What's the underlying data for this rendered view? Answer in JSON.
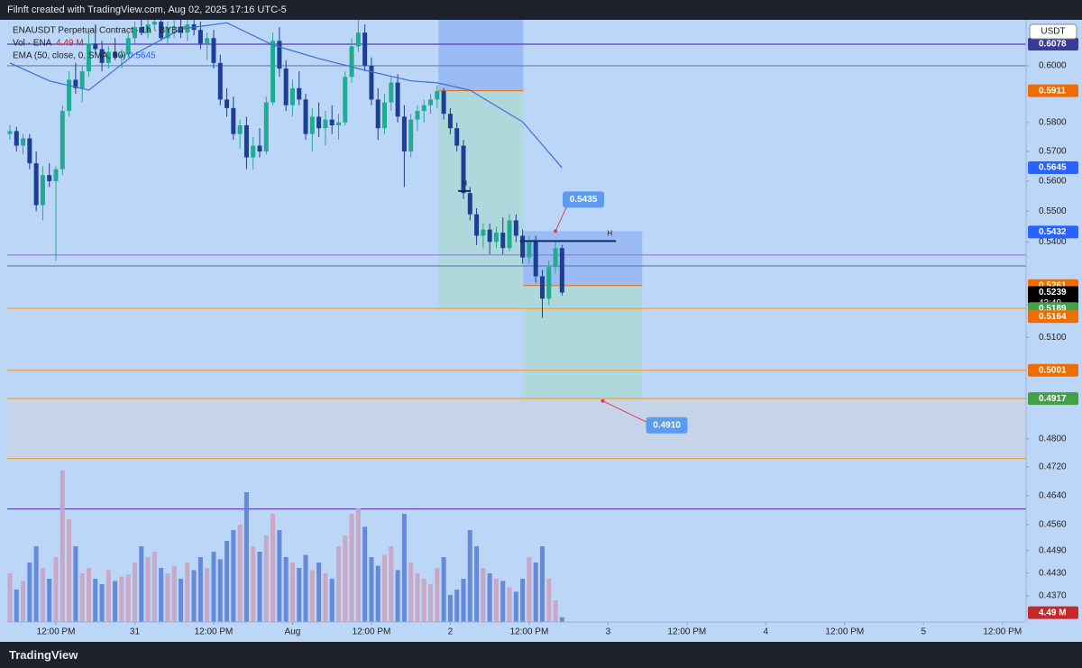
{
  "chart_data": {
    "type": "candlestick",
    "header": "Filnft created with TradingView.com, Aug 02, 2025 17:16 UTC-5",
    "footer": "TradingView",
    "title": "ENAUSDT Perpetual Contract · 1h · BYBIT",
    "currency": "USDT",
    "log_scale": true,
    "xlim": [
      -7.41,
      147.6
    ],
    "ylim": [
      0.4302,
      0.6167
    ],
    "xticks": [
      {
        "value": 0,
        "label": "12:00 PM"
      },
      {
        "value": 12,
        "label": "31"
      },
      {
        "value": 24,
        "label": "12:00 PM"
      },
      {
        "value": 36,
        "label": "Aug"
      },
      {
        "value": 48,
        "label": "12:00 PM"
      },
      {
        "value": 60,
        "label": "2"
      },
      {
        "value": 72,
        "label": "12:00 PM"
      },
      {
        "value": 84,
        "label": "3"
      },
      {
        "value": 96,
        "label": "12:00 PM"
      },
      {
        "value": 108,
        "label": "4"
      },
      {
        "value": 120,
        "label": "12:00 PM"
      },
      {
        "value": 132,
        "label": "5"
      },
      {
        "value": 144,
        "label": "12:00 PM"
      }
    ],
    "yticks": [
      {
        "value": 0.6,
        "label": "0.6000"
      },
      {
        "value": 0.58,
        "label": "0.5800"
      },
      {
        "value": 0.57,
        "label": "0.5700"
      },
      {
        "value": 0.56,
        "label": "0.5600"
      },
      {
        "value": 0.55,
        "label": "0.5500"
      },
      {
        "value": 0.54,
        "label": "0.5400"
      },
      {
        "value": 0.52,
        "label": "0.5200"
      },
      {
        "value": 0.51,
        "label": "0.5100"
      },
      {
        "value": 0.48,
        "label": "0.4800"
      },
      {
        "value": 0.472,
        "label": "0.4720"
      },
      {
        "value": 0.464,
        "label": "0.4640"
      },
      {
        "value": 0.456,
        "label": "0.4560"
      },
      {
        "value": 0.449,
        "label": "0.4490"
      },
      {
        "value": 0.443,
        "label": "0.4430"
      },
      {
        "value": 0.437,
        "label": "0.4370"
      }
    ],
    "up_color": "#22ab94",
    "down_color": "#1c3f95",
    "x": [
      -7,
      -6,
      -5,
      -4,
      -3,
      -2,
      -1,
      0,
      1,
      2,
      3,
      4,
      5,
      6,
      7,
      8,
      9,
      10,
      11,
      12,
      13,
      14,
      15,
      16,
      17,
      18,
      19,
      20,
      21,
      22,
      23,
      24,
      25,
      26,
      27,
      28,
      29,
      30,
      31,
      32,
      33,
      34,
      35,
      36,
      37,
      38,
      39,
      40,
      41,
      42,
      43,
      44,
      45,
      46,
      47,
      48,
      49,
      50,
      51,
      52,
      53,
      54,
      55,
      56,
      57,
      58,
      59,
      60,
      61,
      62,
      63,
      64,
      65,
      66,
      67,
      68,
      69,
      70,
      71,
      72,
      73,
      74,
      75,
      76,
      77
    ],
    "open": [
      0.576,
      0.577,
      0.572,
      0.5745,
      0.566,
      0.552,
      0.562,
      0.56,
      0.564,
      0.584,
      0.595,
      0.592,
      0.598,
      0.608,
      0.606,
      0.601,
      0.605,
      0.603,
      0.604,
      0.61,
      0.614,
      0.612,
      0.615,
      0.616,
      0.61,
      0.614,
      0.614,
      0.612,
      0.615,
      0.613,
      0.608,
      0.61,
      0.601,
      0.588,
      0.585,
      0.576,
      0.579,
      0.568,
      0.572,
      0.57,
      0.587,
      0.609,
      0.599,
      0.586,
      0.592,
      0.588,
      0.576,
      0.582,
      0.578,
      0.581,
      0.579,
      0.58,
      0.596,
      0.607,
      0.612,
      0.6,
      0.588,
      0.578,
      0.587,
      0.594,
      0.582,
      0.57,
      0.581,
      0.584,
      0.586,
      0.588,
      0.591,
      0.583,
      0.578,
      0.572,
      0.556,
      0.549,
      0.542,
      0.544,
      0.54,
      0.543,
      0.538,
      0.547,
      0.542,
      0.535,
      0.54,
      0.529,
      0.522,
      0.532,
      0.538
    ],
    "high": [
      0.579,
      0.5785,
      0.576,
      0.576,
      0.57,
      0.565,
      0.566,
      0.565,
      0.586,
      0.598,
      0.601,
      0.6,
      0.612,
      0.615,
      0.609,
      0.607,
      0.61,
      0.606,
      0.612,
      0.616,
      0.617,
      0.617,
      0.617,
      0.617,
      0.616,
      0.617,
      0.617,
      0.617,
      0.617,
      0.616,
      0.612,
      0.613,
      0.604,
      0.592,
      0.589,
      0.581,
      0.582,
      0.575,
      0.578,
      0.589,
      0.612,
      0.614,
      0.602,
      0.595,
      0.598,
      0.59,
      0.585,
      0.587,
      0.584,
      0.586,
      0.583,
      0.598,
      0.61,
      0.617,
      0.615,
      0.603,
      0.592,
      0.59,
      0.596,
      0.597,
      0.586,
      0.583,
      0.586,
      0.588,
      0.59,
      0.593,
      0.592,
      0.585,
      0.58,
      0.574,
      0.558,
      0.551,
      0.546,
      0.546,
      0.545,
      0.548,
      0.549,
      0.549,
      0.544,
      0.542,
      0.542,
      0.531,
      0.534,
      0.54,
      0.539
    ],
    "low": [
      0.574,
      0.57,
      0.569,
      0.564,
      0.55,
      0.547,
      0.558,
      0.534,
      0.562,
      0.582,
      0.59,
      0.587,
      0.596,
      0.604,
      0.598,
      0.599,
      0.602,
      0.599,
      0.603,
      0.608,
      0.611,
      0.61,
      0.613,
      0.609,
      0.608,
      0.61,
      0.61,
      0.609,
      0.611,
      0.606,
      0.602,
      0.599,
      0.586,
      0.582,
      0.574,
      0.571,
      0.564,
      0.564,
      0.568,
      0.569,
      0.586,
      0.596,
      0.584,
      0.582,
      0.586,
      0.574,
      0.57,
      0.575,
      0.572,
      0.576,
      0.574,
      0.579,
      0.594,
      0.605,
      0.598,
      0.586,
      0.574,
      0.576,
      0.584,
      0.58,
      0.558,
      0.568,
      0.577,
      0.58,
      0.583,
      0.585,
      0.581,
      0.576,
      0.57,
      0.554,
      0.547,
      0.539,
      0.538,
      0.536,
      0.538,
      0.536,
      0.537,
      0.54,
      0.533,
      0.533,
      0.527,
      0.516,
      0.52,
      0.53,
      0.523
    ],
    "close": [
      0.577,
      0.572,
      0.5745,
      0.566,
      0.552,
      0.562,
      0.56,
      0.564,
      0.584,
      0.595,
      0.592,
      0.598,
      0.608,
      0.606,
      0.601,
      0.605,
      0.603,
      0.604,
      0.61,
      0.614,
      0.612,
      0.615,
      0.616,
      0.61,
      0.614,
      0.614,
      0.612,
      0.615,
      0.613,
      0.608,
      0.61,
      0.601,
      0.588,
      0.585,
      0.576,
      0.579,
      0.568,
      0.572,
      0.57,
      0.587,
      0.609,
      0.599,
      0.586,
      0.592,
      0.588,
      0.576,
      0.582,
      0.578,
      0.581,
      0.579,
      0.58,
      0.596,
      0.607,
      0.612,
      0.6,
      0.588,
      0.578,
      0.587,
      0.594,
      0.582,
      0.57,
      0.581,
      0.584,
      0.586,
      0.588,
      0.591,
      0.583,
      0.578,
      0.572,
      0.556,
      0.549,
      0.542,
      0.544,
      0.54,
      0.543,
      0.538,
      0.547,
      0.542,
      0.535,
      0.54,
      0.529,
      0.522,
      0.532,
      0.538,
      0.5239
    ],
    "volume": {
      "name": "Vol · ENA",
      "values": [
        45,
        30,
        38,
        55,
        70,
        50,
        40,
        60,
        140,
        95,
        70,
        45,
        50,
        40,
        35,
        48,
        38,
        42,
        44,
        55,
        70,
        60,
        65,
        50,
        45,
        52,
        40,
        55,
        48,
        60,
        50,
        65,
        58,
        75,
        85,
        90,
        120,
        70,
        65,
        80,
        100,
        85,
        60,
        55,
        50,
        62,
        48,
        55,
        45,
        40,
        70,
        80,
        100,
        105,
        88,
        60,
        52,
        62,
        70,
        48,
        100,
        55,
        45,
        40,
        35,
        50,
        60,
        25,
        30,
        40,
        85,
        70,
        50,
        45,
        40,
        38,
        32,
        28,
        40,
        60,
        55,
        70,
        40,
        20,
        4.49
      ],
      "value_labels": {
        "84": "4.49 M"
      },
      "up_color": "#c9a3bf",
      "down_color": "#5b82d6",
      "label_color": "#c62828"
    },
    "ema": {
      "name": "EMA (50, close, 0, SMA, 50)",
      "color": "#3a6fd6",
      "x": [
        -7,
        -1,
        5,
        12,
        19,
        26,
        33,
        40,
        47,
        54,
        58,
        63,
        71,
        77
      ],
      "values": [
        0.601,
        0.5946,
        0.5913,
        0.6042,
        0.6133,
        0.6156,
        0.6075,
        0.6026,
        0.5984,
        0.5946,
        0.5939,
        0.5913,
        0.5802,
        0.5645
      ]
    },
    "levels": [
      {
        "value": 0.6078,
        "color": "#5b3fb8"
      },
      {
        "value": 0.6,
        "color": "#6b7fb0"
      },
      {
        "value": 0.5358,
        "color": "#8b7fd0"
      },
      {
        "value": 0.5323,
        "color": "#6b7fb0"
      },
      {
        "value": 0.5189,
        "color": "#f0a040"
      },
      {
        "value": 0.5001,
        "color": "#f0a040"
      },
      {
        "value": 0.4917,
        "color": "#f0a040"
      },
      {
        "value": 0.4744,
        "color": "#f0a040"
      },
      {
        "value": 0.4603,
        "color": "#5b3fb8"
      }
    ],
    "zone": {
      "top": 0.4917,
      "bottom": 0.4744,
      "color": "#c8d3e6"
    },
    "positions": [
      {
        "x0": 58.2,
        "x1": 71.1,
        "stop": 0.617,
        "entry": 0.5911,
        "target": 0.5187
      },
      {
        "x0": 71.1,
        "x1": 89.2,
        "stop": 0.5435,
        "entry": 0.5261,
        "target": 0.4917
      }
    ],
    "markers": [
      {
        "label": "H",
        "x0": 61.2,
        "x1": 63.1,
        "value": 0.5567
      },
      {
        "label": "H",
        "x0": 70.6,
        "x1": 85.2,
        "value": 0.5403
      }
    ],
    "callouts": [
      {
        "label": "0.5435",
        "x": 76.0,
        "value": 0.5435
      },
      {
        "label": "0.4910",
        "x": 83.2,
        "value": 0.491
      }
    ],
    "price_labels": [
      {
        "value": 0.6078,
        "label": "0.6078",
        "color": "#3a3a9a"
      },
      {
        "value": 0.5911,
        "label": "0.5911",
        "color": "#ef6c00"
      },
      {
        "value": 0.5645,
        "label": "0.5645",
        "color": "#2962ff"
      },
      {
        "value": 0.5432,
        "label": "0.5432",
        "color": "#2962ff"
      },
      {
        "value": 0.5261,
        "label": "0.5261",
        "color": "#ef6c00"
      },
      {
        "value": 0.5239,
        "label": "0.5239",
        "color": "#000000",
        "sub": "43:49"
      },
      {
        "value": 0.5189,
        "label": "0.5189",
        "color": "#43a047"
      },
      {
        "value": 0.5164,
        "label": "0.5164",
        "color": "#ef6c00"
      },
      {
        "value": 0.5001,
        "label": "0.5001",
        "color": "#ef6c00"
      },
      {
        "value": 0.4917,
        "label": "0.4917",
        "color": "#43a047"
      }
    ]
  }
}
